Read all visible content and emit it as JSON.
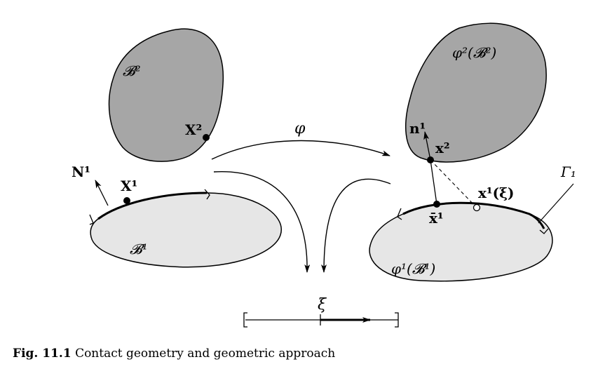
{
  "figure": {
    "bodies": {
      "b2_label": "𝓑²",
      "b1_label": "𝓑¹",
      "phi_b2_label": "φ²(𝓑²)",
      "phi_b1_label": "φ¹(𝓑¹)"
    },
    "points": {
      "X2": "X²",
      "X1": "X¹",
      "N1": "N¹",
      "n1": "n¹",
      "x2": "x²",
      "xbar1": "x̄¹",
      "x1_xi": "x¹(ξ)",
      "Gamma1": "Γ₁"
    },
    "mapping_label": "φ",
    "param_label": "ξ"
  },
  "caption": {
    "prefix": "Fig. 11.1",
    "text": "Contact geometry and geometric approach"
  }
}
